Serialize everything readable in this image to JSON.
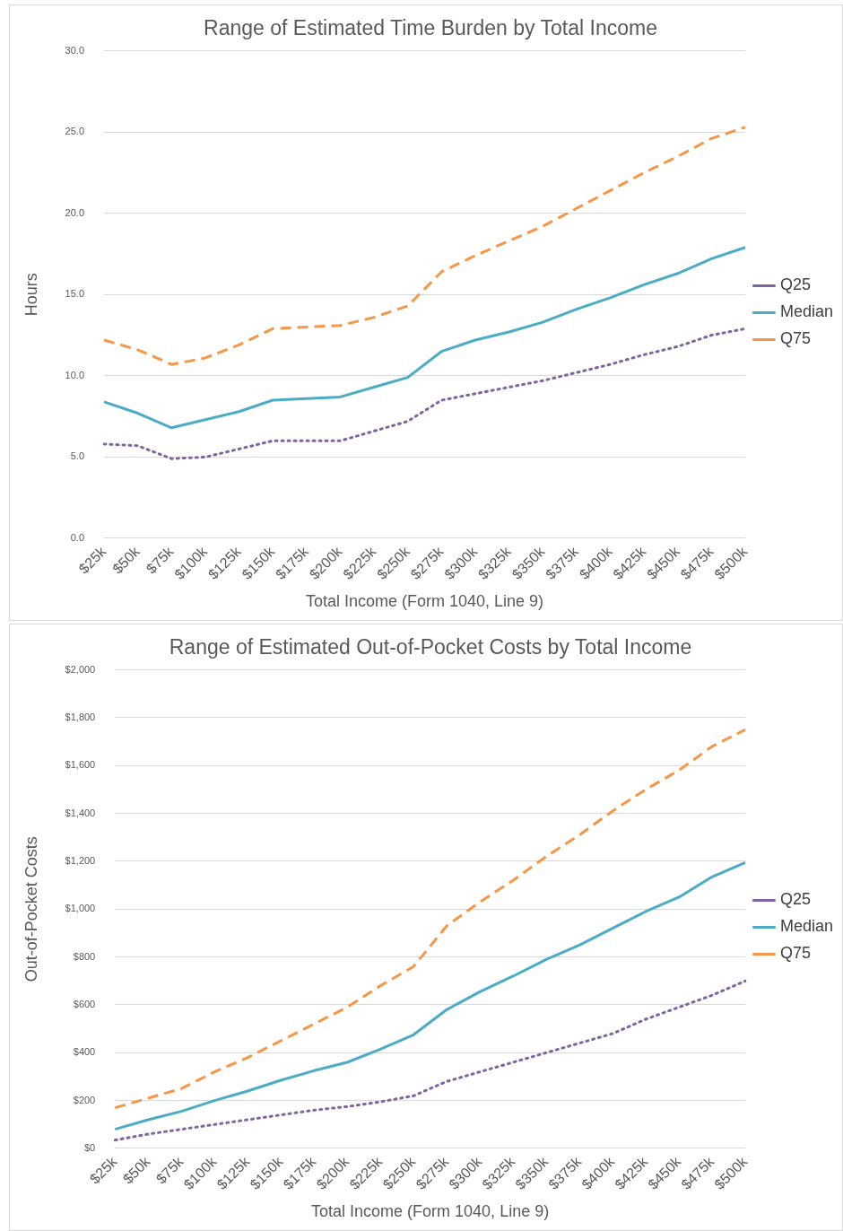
{
  "chart_data": [
    {
      "type": "line",
      "title": "Range of Estimated Time Burden by Total Income",
      "xlabel": "Total Income (Form 1040, Line 9)",
      "ylabel": "Hours",
      "categories": [
        "$25k",
        "$50k",
        "$75k",
        "$100k",
        "$125k",
        "$150k",
        "$175k",
        "$200k",
        "$225k",
        "$250k",
        "$275k",
        "$300k",
        "$325k",
        "$350k",
        "$375k",
        "$400k",
        "$425k",
        "$450k",
        "$475k",
        "$500k"
      ],
      "series": [
        {
          "name": "Q25",
          "color": "#8064a2",
          "line_style": "dotted",
          "values": [
            5.8,
            5.7,
            4.9,
            5.0,
            5.5,
            6.0,
            6.0,
            6.0,
            6.6,
            7.2,
            8.5,
            8.9,
            9.3,
            9.7,
            10.2,
            10.7,
            11.3,
            11.8,
            12.5,
            12.9
          ]
        },
        {
          "name": "Median",
          "color": "#4bacc6",
          "line_style": "solid",
          "values": [
            8.4,
            7.7,
            6.8,
            7.3,
            7.8,
            8.5,
            8.6,
            8.7,
            9.3,
            9.9,
            11.5,
            12.2,
            12.7,
            13.3,
            14.1,
            14.8,
            15.6,
            16.3,
            17.2,
            17.9
          ]
        },
        {
          "name": "Q75",
          "color": "#f79646",
          "line_style": "dashed",
          "values": [
            12.2,
            11.6,
            10.7,
            11.1,
            11.9,
            12.9,
            13.0,
            13.1,
            13.6,
            14.3,
            16.4,
            17.4,
            18.3,
            19.2,
            20.3,
            21.4,
            22.5,
            23.5,
            24.6,
            25.3
          ]
        }
      ],
      "ylim": [
        0,
        30
      ],
      "yticks": [
        {
          "value": 0,
          "label": "0.0"
        },
        {
          "value": 5,
          "label": "5.0"
        },
        {
          "value": 10,
          "label": "10.0"
        },
        {
          "value": 15,
          "label": "15.0"
        },
        {
          "value": 20,
          "label": "20.0"
        },
        {
          "value": 25,
          "label": "25.0"
        },
        {
          "value": 30,
          "label": "30.0"
        }
      ],
      "grid": "y",
      "legend": "right",
      "marker": "none"
    },
    {
      "type": "line",
      "title": "Range of Estimated Out-of-Pocket Costs by Total Income",
      "xlabel": "Total Income (Form 1040, Line 9)",
      "ylabel": "Out-of-Pocket Costs",
      "categories": [
        "$25k",
        "$50k",
        "$75k",
        "$100k",
        "$125k",
        "$150k",
        "$175k",
        "$200k",
        "$225k",
        "$250k",
        "$275k",
        "$300k",
        "$325k",
        "$350k",
        "$375k",
        "$400k",
        "$425k",
        "$450k",
        "$475k",
        "$500k"
      ],
      "series": [
        {
          "name": "Q25",
          "color": "#8064a2",
          "line_style": "dotted",
          "values": [
            35,
            60,
            80,
            100,
            120,
            140,
            160,
            175,
            195,
            220,
            280,
            320,
            360,
            400,
            440,
            480,
            540,
            590,
            640,
            700
          ]
        },
        {
          "name": "Median",
          "color": "#4bacc6",
          "line_style": "solid",
          "values": [
            80,
            120,
            155,
            200,
            240,
            285,
            325,
            360,
            415,
            475,
            580,
            655,
            720,
            790,
            850,
            920,
            990,
            1050,
            1135,
            1195
          ]
        },
        {
          "name": "Q75",
          "color": "#f79646",
          "line_style": "dashed",
          "values": [
            170,
            210,
            250,
            320,
            380,
            450,
            520,
            590,
            680,
            760,
            930,
            1030,
            1120,
            1220,
            1310,
            1410,
            1500,
            1580,
            1680,
            1750
          ]
        }
      ],
      "ylim": [
        0,
        2000
      ],
      "yticks": [
        {
          "value": 0,
          "label": "$0"
        },
        {
          "value": 200,
          "label": "$200"
        },
        {
          "value": 400,
          "label": "$400"
        },
        {
          "value": 600,
          "label": "$600"
        },
        {
          "value": 800,
          "label": "$800"
        },
        {
          "value": 1000,
          "label": "$1,000"
        },
        {
          "value": 1200,
          "label": "$1,200"
        },
        {
          "value": 1400,
          "label": "$1,400"
        },
        {
          "value": 1600,
          "label": "$1,600"
        },
        {
          "value": 1800,
          "label": "$1,800"
        },
        {
          "value": 2000,
          "label": "$2,000"
        }
      ],
      "grid": "y",
      "legend": "right",
      "marker": "none"
    }
  ]
}
